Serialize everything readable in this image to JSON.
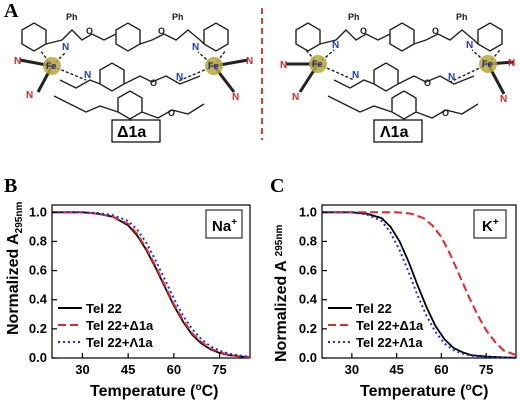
{
  "panels": {
    "A": {
      "letter": "A"
    },
    "B": {
      "letter": "B"
    },
    "C": {
      "letter": "C"
    }
  },
  "molecules": [
    {
      "label": "Δ1a",
      "metal": "Fe",
      "substituent": "Ph",
      "nitrogen": "N",
      "oxygen": "O"
    },
    {
      "label": "Λ1a",
      "metal": "Fe",
      "substituent": "Ph",
      "nitrogen": "N",
      "oxygen": "O"
    }
  ],
  "colors": {
    "black": "#000000",
    "red": "#e3262a",
    "blue": "#1f2fd6",
    "fe_ball": "#b5a93a",
    "n_red": "#e3262a",
    "n_blue": "#1a3dc9",
    "divider": "#e3262a"
  },
  "chart_data": [
    {
      "panel": "B",
      "type": "line",
      "ylabel_main": "Normalized A",
      "ylabel_sub": "295nm",
      "xlabel_main": "Temperature (",
      "xlabel_sup": "o",
      "xlabel_end": "C)",
      "xlim": [
        20,
        85
      ],
      "ylim": [
        0.0,
        1.05
      ],
      "xticks": [
        30,
        45,
        60,
        75
      ],
      "yticks": [
        0.0,
        0.2,
        0.4,
        0.6,
        0.8,
        1.0
      ],
      "ytick_labels": [
        "0.0",
        "0.2",
        "0.4",
        "0.6",
        "0.8",
        "1.0"
      ],
      "ion": {
        "symbol": "Na",
        "charge": "+"
      },
      "legend_position": "bottom-left",
      "series": [
        {
          "name": "Tel 22",
          "color": "#000000",
          "style": "solid",
          "x": [
            20,
            30,
            35,
            40,
            45,
            48,
            51,
            54,
            57,
            60,
            63,
            66,
            69,
            72,
            75,
            78,
            82,
            85
          ],
          "y": [
            1.0,
            1.0,
            0.99,
            0.97,
            0.91,
            0.84,
            0.74,
            0.62,
            0.49,
            0.36,
            0.25,
            0.16,
            0.1,
            0.06,
            0.035,
            0.02,
            0.01,
            0.005
          ]
        },
        {
          "name": "Tel 22+Δ1a",
          "color": "#e3262a",
          "style": "dashed",
          "x": [
            20,
            30,
            35,
            40,
            45,
            48,
            51,
            54,
            57,
            60,
            63,
            66,
            69,
            72,
            75,
            78,
            82,
            85
          ],
          "y": [
            1.0,
            1.0,
            0.99,
            0.97,
            0.92,
            0.85,
            0.75,
            0.63,
            0.5,
            0.37,
            0.26,
            0.17,
            0.11,
            0.065,
            0.04,
            0.022,
            0.01,
            0.005
          ]
        },
        {
          "name": "Tel 22+Λ1a",
          "color": "#1f2fd6",
          "style": "dotted",
          "x": [
            20,
            30,
            35,
            40,
            45,
            48,
            51,
            54,
            57,
            60,
            63,
            66,
            69,
            72,
            75,
            78,
            82,
            85
          ],
          "y": [
            1.0,
            1.0,
            0.995,
            0.98,
            0.94,
            0.88,
            0.79,
            0.67,
            0.54,
            0.41,
            0.29,
            0.2,
            0.13,
            0.08,
            0.05,
            0.03,
            0.015,
            0.008
          ]
        }
      ]
    },
    {
      "panel": "C",
      "type": "line",
      "ylabel_main": "Normalized A",
      "ylabel_sub": "295nm",
      "xlabel_main": "Temperature (",
      "xlabel_sup": "o",
      "xlabel_end": "C)",
      "xlim": [
        20,
        85
      ],
      "ylim": [
        0.0,
        1.05
      ],
      "xticks": [
        30,
        45,
        60,
        75
      ],
      "yticks": [
        0.0,
        0.2,
        0.4,
        0.6,
        0.8,
        1.0
      ],
      "ytick_labels": [
        "0.0",
        "0.2",
        "0.4",
        "0.6",
        "0.8",
        "1.0"
      ],
      "ion": {
        "symbol": "K",
        "charge": "+"
      },
      "legend_position": "bottom-left",
      "series": [
        {
          "name": "Tel 22",
          "color": "#000000",
          "style": "solid",
          "x": [
            20,
            30,
            35,
            40,
            43,
            46,
            49,
            52,
            55,
            58,
            61,
            64,
            67,
            70,
            75,
            80,
            85
          ],
          "y": [
            1.0,
            1.0,
            0.99,
            0.96,
            0.9,
            0.8,
            0.66,
            0.5,
            0.35,
            0.22,
            0.13,
            0.07,
            0.04,
            0.02,
            0.01,
            0.005,
            0.002
          ]
        },
        {
          "name": "Tel 22+Δ1a",
          "color": "#e3262a",
          "style": "dashed",
          "x": [
            20,
            30,
            40,
            45,
            50,
            54,
            57,
            60,
            63,
            66,
            69,
            72,
            75,
            78,
            81,
            85
          ],
          "y": [
            1.0,
            1.0,
            1.0,
            1.0,
            0.99,
            0.96,
            0.91,
            0.83,
            0.71,
            0.57,
            0.43,
            0.3,
            0.19,
            0.11,
            0.05,
            0.02
          ]
        },
        {
          "name": "Tel 22+Λ1a",
          "color": "#1f2fd6",
          "style": "dotted",
          "x": [
            20,
            30,
            35,
            40,
            43,
            46,
            49,
            52,
            55,
            58,
            61,
            64,
            67,
            70,
            75,
            80,
            85
          ],
          "y": [
            1.0,
            1.0,
            0.985,
            0.94,
            0.86,
            0.74,
            0.59,
            0.43,
            0.29,
            0.18,
            0.1,
            0.055,
            0.03,
            0.015,
            0.006,
            0.003,
            0.001
          ]
        }
      ]
    }
  ]
}
